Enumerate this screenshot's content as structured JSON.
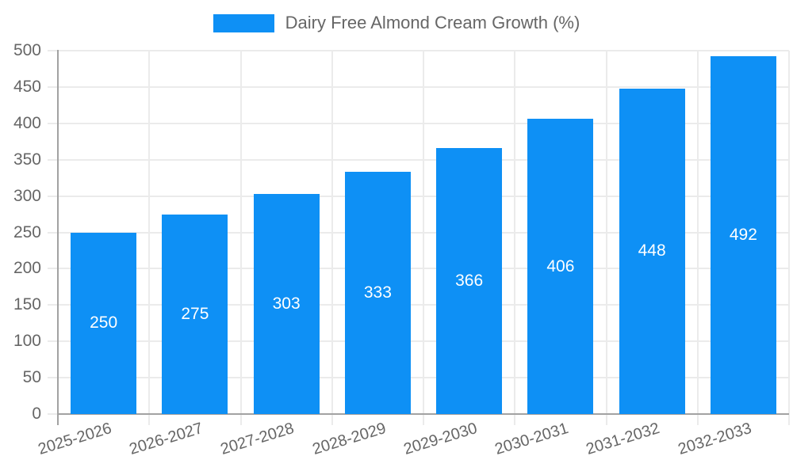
{
  "chart_data": {
    "type": "bar",
    "title": "Dairy Free Almond Cream Growth (%)",
    "legend": {
      "label": "Dairy Free Almond Cream Growth (%)",
      "position": "top"
    },
    "categories": [
      "2025-2026",
      "2026-2027",
      "2027-2028",
      "2028-2029",
      "2029-2030",
      "2030-2031",
      "2031-2032",
      "2032-2033"
    ],
    "values": [
      250,
      275,
      303,
      333,
      366,
      406,
      448,
      492
    ],
    "xlabel": "",
    "ylabel": "",
    "ylim": [
      0,
      500
    ],
    "yticks": [
      0,
      50,
      100,
      150,
      200,
      250,
      300,
      350,
      400,
      450,
      500
    ],
    "grid": true,
    "bar_value_labels_visible": true,
    "colors": {
      "bar": "#0e90f5",
      "bar_value_label": "#ffffff",
      "axis_text": "#666666",
      "axis_line": "#a2a2a2",
      "gridline": "#ebebeb",
      "background": "#ffffff"
    }
  }
}
